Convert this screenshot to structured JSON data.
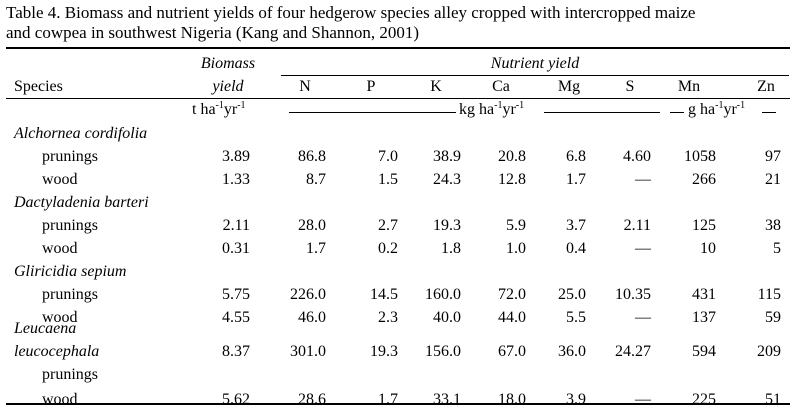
{
  "caption": {
    "line1": "Table 4.  Biomass and nutrient yields of four hedgerow species alley cropped with intercropped maize",
    "line2": "and cowpea in southwest Nigeria (Kang and Shannon, 2001)"
  },
  "header": {
    "species": "Species",
    "biomass_1": "Biomass",
    "biomass_2": "yield",
    "nutrient_yield": "Nutrient yield",
    "cols": [
      "N",
      "P",
      "K",
      "Ca",
      "Mg",
      "S",
      "Mn",
      "Zn"
    ],
    "units": {
      "biomass": {
        "base": "t ha",
        "e1": "-1",
        "mid": "yr",
        "e2": "-1"
      },
      "kg": {
        "base": "kg ha",
        "e1": "-1",
        "mid": "yr",
        "e2": "-1"
      },
      "g": {
        "base": "g ha",
        "e1": "-1",
        "mid": "yr",
        "e2": "-1"
      }
    }
  },
  "groups": [
    {
      "name": "Alchornea cordifolia",
      "rows": [
        {
          "label": "prunings",
          "values": [
            "3.89",
            "86.8",
            "7.0",
            "38.9",
            "20.8",
            "6.8",
            "4.60",
            "1058",
            "97"
          ]
        },
        {
          "label": "wood",
          "values": [
            "1.33",
            "8.7",
            "1.5",
            "24.3",
            "12.8",
            "1.7",
            "—",
            "266",
            "21"
          ]
        }
      ]
    },
    {
      "name": "Dactyladenia barteri",
      "rows": [
        {
          "label": "prunings",
          "values": [
            "2.11",
            "28.0",
            "2.7",
            "19.3",
            "5.9",
            "3.7",
            "2.11",
            "125",
            "38"
          ]
        },
        {
          "label": "wood",
          "values": [
            "0.31",
            "1.7",
            "0.2",
            "1.8",
            "1.0",
            "0.4",
            "—",
            "10",
            "5"
          ]
        }
      ]
    },
    {
      "name": "Gliricidia sepium",
      "rows": [
        {
          "label": "prunings",
          "values": [
            "5.75",
            "226.0",
            "14.5",
            "160.0",
            "72.0",
            "25.0",
            "10.35",
            "431",
            "115"
          ]
        },
        {
          "label": "wood",
          "values": [
            "4.55",
            "46.0",
            "2.3",
            "40.0",
            "44.0",
            "5.5",
            "—",
            "137",
            "59"
          ]
        }
      ]
    },
    {
      "name_line1": "Leucaena",
      "name_line2": "leucocephala",
      "rows": [
        {
          "label": "prunings",
          "values": [
            "8.37",
            "301.0",
            "19.3",
            "156.0",
            "67.0",
            "36.0",
            "24.27",
            "594",
            "209"
          ]
        },
        {
          "label": "wood",
          "values": [
            "5.62",
            "28.6",
            "1.7",
            "33.1",
            "18.0",
            "3.9",
            "—",
            "225",
            "51"
          ]
        }
      ]
    }
  ]
}
